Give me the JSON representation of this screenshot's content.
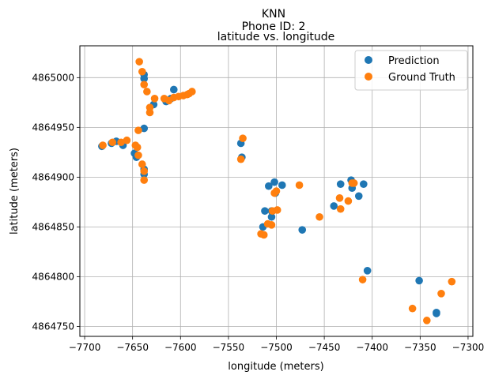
{
  "chart_data": {
    "type": "scatter",
    "suptitle": "KNN",
    "subtitle": "Phone ID: 2",
    "title": "latitude vs. longitude",
    "xlabel": "longitude (meters)",
    "ylabel": "latitude (meters)",
    "xlim": [
      -7705,
      -7295
    ],
    "ylim": [
      4864740,
      4865032
    ],
    "xticks": [
      -7700,
      -7650,
      -7600,
      -7550,
      -7500,
      -7450,
      -7400,
      -7350,
      -7300
    ],
    "xtick_labels": [
      "−7700",
      "−7650",
      "−7600",
      "−7550",
      "−7500",
      "−7450",
      "−7400",
      "−7350",
      "−7300"
    ],
    "yticks": [
      4864750,
      4864800,
      4864850,
      4864900,
      4864950,
      4865000
    ],
    "ytick_labels": [
      "4864750",
      "4864800",
      "4864850",
      "4864900",
      "4864950",
      "4865000"
    ],
    "grid": true,
    "legend_position": "top-right",
    "series": [
      {
        "name": "Prediction",
        "color": "#1f77b4",
        "points": [
          [
            -7682,
            4864931
          ],
          [
            -7672,
            4864934
          ],
          [
            -7667,
            4864936
          ],
          [
            -7660,
            4864932
          ],
          [
            -7648,
            4864924
          ],
          [
            -7646,
            4864920
          ],
          [
            -7638,
            4864949
          ],
          [
            -7638,
            4864908
          ],
          [
            -7638,
            4864903
          ],
          [
            -7638,
            4865003
          ],
          [
            -7638,
            4864999
          ],
          [
            -7628,
            4864973
          ],
          [
            -7615,
            4864976
          ],
          [
            -7610,
            4864979
          ],
          [
            -7607,
            4864988
          ],
          [
            -7537,
            4864934
          ],
          [
            -7536,
            4864920
          ],
          [
            -7514,
            4864850
          ],
          [
            -7512,
            4864866
          ],
          [
            -7508,
            4864891
          ],
          [
            -7505,
            4864860
          ],
          [
            -7505,
            4864866
          ],
          [
            -7502,
            4864895
          ],
          [
            -7501,
            4864884
          ],
          [
            -7494,
            4864892
          ],
          [
            -7473,
            4864847
          ],
          [
            -7440,
            4864871
          ],
          [
            -7433,
            4864893
          ],
          [
            -7422,
            4864897
          ],
          [
            -7421,
            4864889
          ],
          [
            -7414,
            4864881
          ],
          [
            -7409,
            4864893
          ],
          [
            -7405,
            4864806
          ],
          [
            -7351,
            4864796
          ],
          [
            -7333,
            4864764
          ],
          [
            -7333,
            4864763
          ]
        ]
      },
      {
        "name": "Ground Truth",
        "color": "#ff7f0e",
        "points": [
          [
            -7681,
            4864932
          ],
          [
            -7671,
            4864935
          ],
          [
            -7662,
            4864935
          ],
          [
            -7656,
            4864937
          ],
          [
            -7647,
            4864932
          ],
          [
            -7645,
            4864930
          ],
          [
            -7644,
            4864922
          ],
          [
            -7644,
            4864947
          ],
          [
            -7643,
            4865016
          ],
          [
            -7640,
            4865006
          ],
          [
            -7640,
            4864913
          ],
          [
            -7638,
            4864906
          ],
          [
            -7638,
            4864897
          ],
          [
            -7638,
            4864993
          ],
          [
            -7635,
            4864986
          ],
          [
            -7632,
            4864970
          ],
          [
            -7632,
            4864965
          ],
          [
            -7627,
            4864979
          ],
          [
            -7617,
            4864979
          ],
          [
            -7612,
            4864977
          ],
          [
            -7607,
            4864980
          ],
          [
            -7602,
            4864981
          ],
          [
            -7597,
            4864982
          ],
          [
            -7593,
            4864983
          ],
          [
            -7591,
            4864984
          ],
          [
            -7588,
            4864986
          ],
          [
            -7537,
            4864918
          ],
          [
            -7535,
            4864939
          ],
          [
            -7516,
            4864843
          ],
          [
            -7513,
            4864842
          ],
          [
            -7509,
            4864853
          ],
          [
            -7505,
            4864852
          ],
          [
            -7504,
            4864866
          ],
          [
            -7502,
            4864884
          ],
          [
            -7500,
            4864886
          ],
          [
            -7499,
            4864867
          ],
          [
            -7476,
            4864892
          ],
          [
            -7455,
            4864860
          ],
          [
            -7434,
            4864879
          ],
          [
            -7433,
            4864868
          ],
          [
            -7425,
            4864876
          ],
          [
            -7421,
            4864894
          ],
          [
            -7419,
            4864894
          ],
          [
            -7410,
            4864797
          ],
          [
            -7358,
            4864768
          ],
          [
            -7343,
            4864756
          ],
          [
            -7328,
            4864783
          ],
          [
            -7317,
            4864795
          ]
        ]
      }
    ]
  }
}
